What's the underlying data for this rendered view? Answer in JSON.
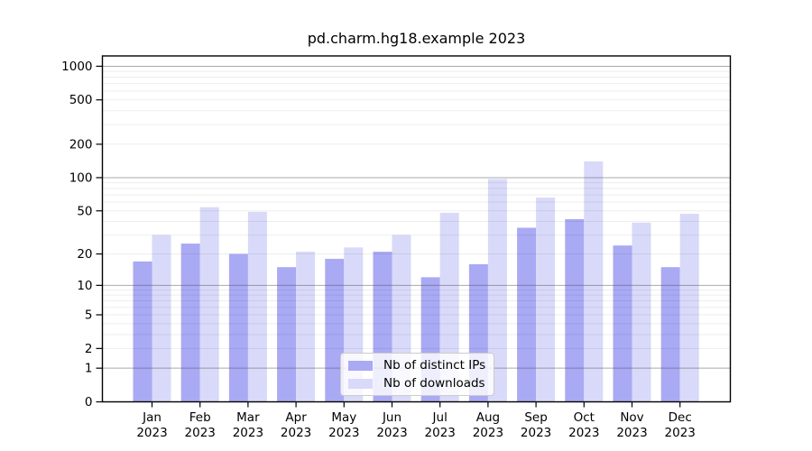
{
  "title": "pd.charm.hg18.example 2023",
  "chart_data": {
    "type": "bar",
    "title": "pd.charm.hg18.example 2023",
    "categories": [
      "Jan 2023",
      "Feb 2023",
      "Mar 2023",
      "Apr 2023",
      "May 2023",
      "Jun 2023",
      "Jul 2023",
      "Aug 2023",
      "Sep 2023",
      "Oct 2023",
      "Nov 2023",
      "Dec 2023"
    ],
    "series": [
      {
        "name": "Nb of distinct IPs",
        "color": "#a9a9f4",
        "values": [
          17,
          25,
          20,
          15,
          18,
          21,
          12,
          16,
          35,
          42,
          24,
          15
        ]
      },
      {
        "name": "Nb of downloads",
        "color": "#d9d9f9",
        "values": [
          30,
          54,
          49,
          21,
          23,
          30,
          48,
          97,
          66,
          140,
          39,
          47
        ]
      }
    ],
    "xlabel": "",
    "ylabel": "",
    "yscale": "log1p",
    "y_ticks": [
      0,
      1,
      2,
      5,
      10,
      20,
      50,
      100,
      200,
      500,
      1000
    ],
    "ylim": [
      0,
      1270
    ],
    "grid": true,
    "legend_position": "lower center",
    "axis_color": "#000000",
    "major_grid_color": "#b8b8b8",
    "minor_grid_color": "#ededed"
  }
}
